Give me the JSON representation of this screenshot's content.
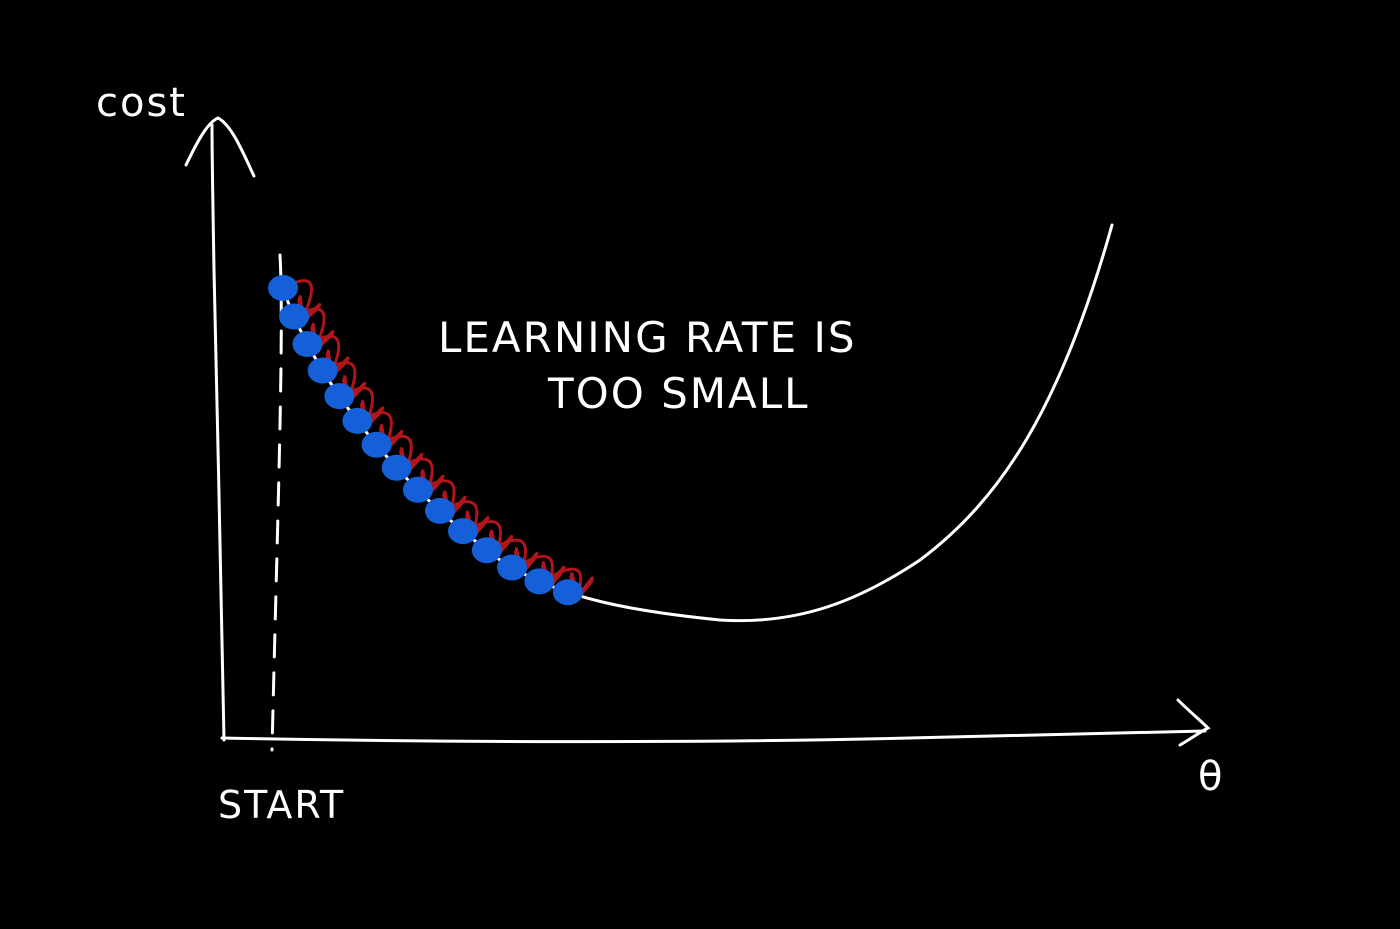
{
  "diagram": {
    "y_axis_label": "cost",
    "x_axis_label": "θ",
    "start_label": "START",
    "annotation_line1": "LEARNING RATE IS",
    "annotation_line2": "TOO SMALL",
    "steps_shown": 15,
    "colors": {
      "background": "#000000",
      "curve": "#ffffff",
      "step_point": "#1560d8",
      "step_arrow": "#b0151a"
    }
  }
}
